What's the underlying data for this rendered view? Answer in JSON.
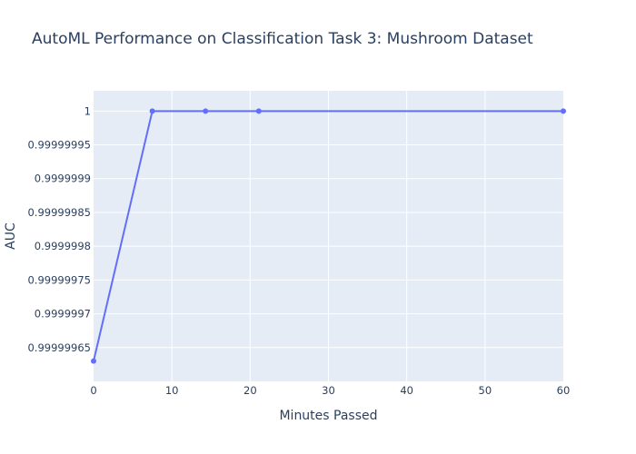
{
  "chart_data": {
    "type": "line",
    "title": "AutoML Performance on Classification Task 3: Mushroom Dataset",
    "xlabel": "Minutes Passed",
    "ylabel": "AUC",
    "xlim": [
      0,
      60
    ],
    "ylim": [
      0.9999996,
      1.00000003
    ],
    "x_ticks": [
      0,
      10,
      20,
      30,
      40,
      50,
      60
    ],
    "y_ticks": [
      0.99999965,
      0.9999997,
      0.99999975,
      0.9999998,
      0.99999985,
      0.9999999,
      0.99999995,
      1
    ],
    "y_tick_labels": [
      "0.99999965",
      "0.9999997",
      "0.99999975",
      "0.9999998",
      "0.99999985",
      "0.9999999",
      "0.99999995",
      "1"
    ],
    "series": [
      {
        "color": "#636efa",
        "x": [
          0,
          7.5,
          14.3,
          21.1,
          60
        ],
        "y": [
          0.99999963,
          1,
          1,
          1,
          1
        ]
      }
    ],
    "grid": true,
    "plot_bgcolor": "#e5ecf6",
    "grid_color": "#ffffff",
    "text_color": "#2a3f5f"
  }
}
